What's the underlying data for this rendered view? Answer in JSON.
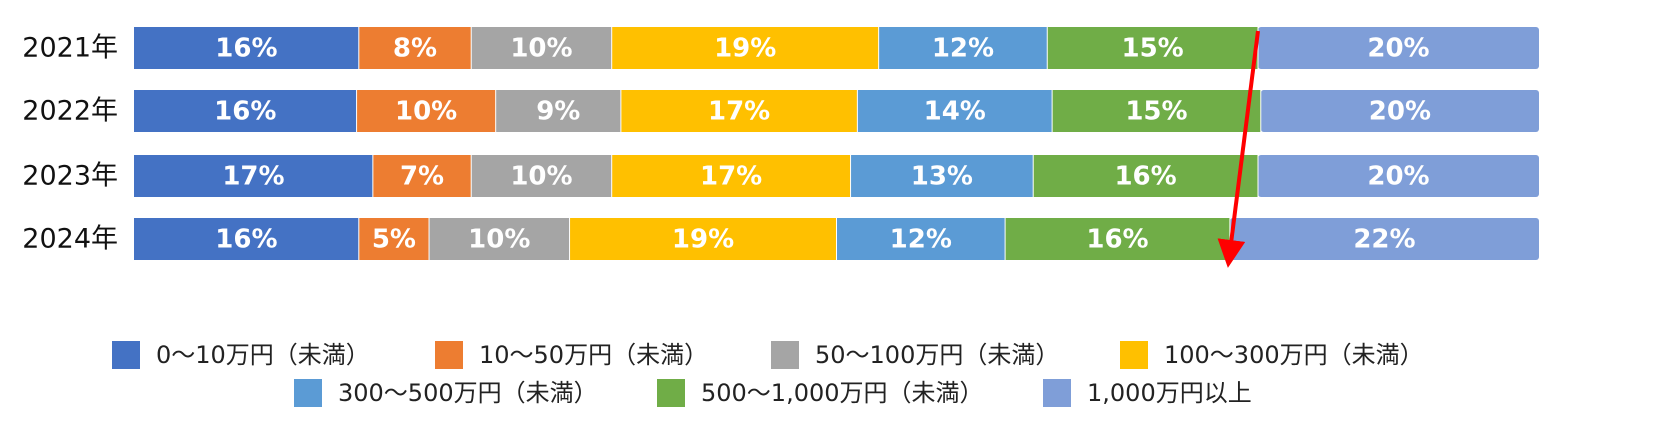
{
  "chart_data": {
    "type": "bar",
    "orientation": "horizontal",
    "stacked": "100%",
    "title": "",
    "xlabel": "",
    "ylabel": "",
    "categories": [
      "2021年",
      "2022年",
      "2023年",
      "2024年"
    ],
    "series": [
      {
        "name": "0～10万円（未満）",
        "color": "#4472C4",
        "values": [
          16,
          16,
          17,
          16
        ],
        "labels": [
          "16%",
          "16%",
          "17%",
          "16%"
        ]
      },
      {
        "name": "10～50万円（未満）",
        "color": "#ED7D31",
        "values": [
          8,
          10,
          7,
          5
        ],
        "labels": [
          "8%",
          "10%",
          "7%",
          "5%"
        ]
      },
      {
        "name": "50～100万円（未満）",
        "color": "#A5A5A5",
        "values": [
          10,
          9,
          10,
          10
        ],
        "labels": [
          "10%",
          "9%",
          "10%",
          "10%"
        ]
      },
      {
        "name": "100～300万円（未満）",
        "color": "#FFC000",
        "values": [
          19,
          17,
          17,
          19
        ],
        "labels": [
          "19%",
          "17%",
          "17%",
          "19%"
        ]
      },
      {
        "name": "300～500万円（未満）",
        "color": "#5B9BD5",
        "values": [
          12,
          14,
          13,
          12
        ],
        "labels": [
          "12%",
          "14%",
          "13%",
          "12%"
        ]
      },
      {
        "name": "500～1,000万円（未満）",
        "color": "#70AD47",
        "values": [
          15,
          15,
          16,
          16
        ],
        "labels": [
          "15%",
          "15%",
          "16%",
          "16%"
        ]
      },
      {
        "name": "1,000万円以上",
        "color": "#7F9ED8",
        "values": [
          20,
          20,
          20,
          22
        ],
        "labels": [
          "20%",
          "20%",
          "20%",
          "22%"
        ]
      }
    ],
    "legend_position": "bottom",
    "grid": false,
    "annotation": {
      "type": "arrow",
      "color": "#FF0000",
      "from": {
        "category": "2021年",
        "cumulative_percent": 80
      },
      "to": {
        "category": "2024年",
        "cumulative_percent": 78
      }
    }
  }
}
